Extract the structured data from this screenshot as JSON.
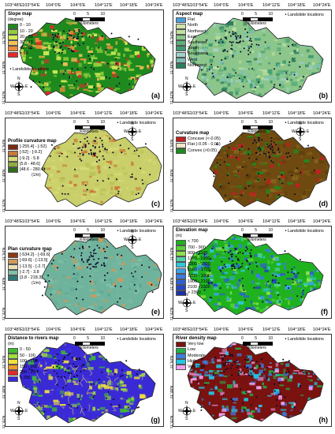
{
  "lon_ticks": [
    "103°48'E",
    "103°54'E",
    "104°0'E",
    "104°6'E",
    "104°12'E",
    "104°18'E",
    "104°24'E"
  ],
  "lat_ticks": [
    "21°54'N",
    "21°48'N",
    "21°42'N"
  ],
  "scale": {
    "label": "Kilometers",
    "nums": [
      "0",
      "5",
      "10"
    ]
  },
  "compass": {
    "n": "N",
    "s": "S",
    "w": "W",
    "e": "E"
  },
  "landslide_label": "Landslide locations",
  "panels": [
    {
      "id": "a",
      "letter": "(a)",
      "title": "Slope map",
      "subtitle": "(degree)",
      "unit": "",
      "legend_left": false,
      "classes": [
        {
          "label": "0 - 10",
          "color": "#1e8a1e"
        },
        {
          "label": "10 - 20",
          "color": "#8fcf3c"
        },
        {
          "label": "20 - 30",
          "color": "#d6ee5a"
        },
        {
          "label": "30 - 40",
          "color": "#f3c356"
        },
        {
          "label": "40 - 50",
          "color": "#ef8a3a"
        },
        {
          "label": "> 50",
          "color": "#e5282a"
        }
      ]
    },
    {
      "id": "b",
      "letter": "(b)",
      "title": "Aspect map",
      "subtitle": "",
      "unit": "",
      "legend_left": false,
      "classes": [
        {
          "label": "Flat",
          "color": "#4b9fd9"
        },
        {
          "label": "North",
          "color": "#cfe6a8"
        },
        {
          "label": "Northeast",
          "color": "#bfe0a0"
        },
        {
          "label": "East",
          "color": "#8cc68a"
        },
        {
          "label": "Southeast",
          "color": "#5daf7a"
        },
        {
          "label": "South",
          "color": "#3f9a72"
        },
        {
          "label": "Southwest",
          "color": "#9fd0c8"
        },
        {
          "label": "West",
          "color": "#7cc0b4"
        },
        {
          "label": "Northwest",
          "color": "#2f7e5f"
        }
      ]
    },
    {
      "id": "c",
      "letter": "(c)",
      "title": "Profile curvature map",
      "subtitle": "",
      "unit": "(1/m)",
      "legend_left": true,
      "classes": [
        {
          "label": "[-255.4] - [-52]",
          "color": "#7b2a10"
        },
        {
          "label": "[-52] - [-9.2]",
          "color": "#c97a38"
        },
        {
          "label": "[-9.2] - 5.8",
          "color": "#d7da78"
        },
        {
          "label": "[5.8 - 48.6]",
          "color": "#8fae3b"
        },
        {
          "label": "[48.6 - 280.6]",
          "color": "#2f6b1c"
        }
      ]
    },
    {
      "id": "d",
      "letter": "(d)",
      "title": "Curvature map",
      "subtitle": "",
      "unit": "",
      "legend_left": true,
      "classes": [
        {
          "label": "Concave (<-0.05)",
          "color": "#c01f1f"
        },
        {
          "label": "Flat (-0.05 - 0.05)",
          "color": "#f0e6c8"
        },
        {
          "label": "Convex (>0.05)",
          "color": "#1f8a1f"
        }
      ]
    },
    {
      "id": "e",
      "letter": "(e)",
      "title": "Plan curvature map",
      "subtitle": "",
      "unit": "(1/m)",
      "legend_left": true,
      "classes": [
        {
          "label": "[-534.2] - [-69.6]",
          "color": "#8b3a12"
        },
        {
          "label": "[-69.6] - [-13.5]",
          "color": "#d09a5a"
        },
        {
          "label": "[-13.5] - [-2.7]",
          "color": "#e9e2b5"
        },
        {
          "label": "[-2.7] - 3.8",
          "color": "#7fbfa8"
        },
        {
          "label": "[3.8 - 218.3]",
          "color": "#2b7a78"
        }
      ]
    },
    {
      "id": "f",
      "letter": "(f)",
      "title": "Elevation map",
      "subtitle": "(m)",
      "unit": "",
      "legend_left": false,
      "classes": [
        {
          "label": "< 700",
          "color": "#1fb21f"
        },
        {
          "label": "700 - 900",
          "color": "#57d136"
        },
        {
          "label": "900 - 1100",
          "color": "#8fe04a"
        },
        {
          "label": "1100 - 1300",
          "color": "#4fd3a8"
        },
        {
          "label": "1300 - 1500",
          "color": "#2fc7d9"
        },
        {
          "label": "1500 - 1700",
          "color": "#3aa2e6"
        },
        {
          "label": "1700 - 1900",
          "color": "#3a7ce3"
        },
        {
          "label": "1900 - 2100",
          "color": "#2f5fd8"
        },
        {
          "label": "2100 - 2300",
          "color": "#2345c7"
        },
        {
          "label": "> 2300",
          "color": "#1f2fa6"
        }
      ]
    },
    {
      "id": "g",
      "letter": "(g)",
      "title": "Distance to rivers map",
      "subtitle": "(m)",
      "unit": "",
      "legend_left": false,
      "classes": [
        {
          "label": "0 - 50",
          "color": "#3fbf2f"
        },
        {
          "label": "50 - 100",
          "color": "#9fe03a"
        },
        {
          "label": "100 - 150",
          "color": "#f3e13a"
        },
        {
          "label": "150 - 200",
          "color": "#f39a2a"
        },
        {
          "label": "200 - 250",
          "color": "#e5282a"
        },
        {
          "label": "> 250",
          "color": "#3a2ad6"
        }
      ]
    },
    {
      "id": "h",
      "letter": "(h)",
      "title": "River density map",
      "subtitle": "",
      "unit": "",
      "legend_left": false,
      "classes": [
        {
          "label": "Very low",
          "color": "#7a1210"
        },
        {
          "label": "Low",
          "color": "#23b24a"
        },
        {
          "label": "Moderate",
          "color": "#3a7fe0"
        },
        {
          "label": "High",
          "color": "#22c7e6"
        },
        {
          "label": "Very high",
          "color": "#f0a0ee"
        }
      ]
    }
  ]
}
